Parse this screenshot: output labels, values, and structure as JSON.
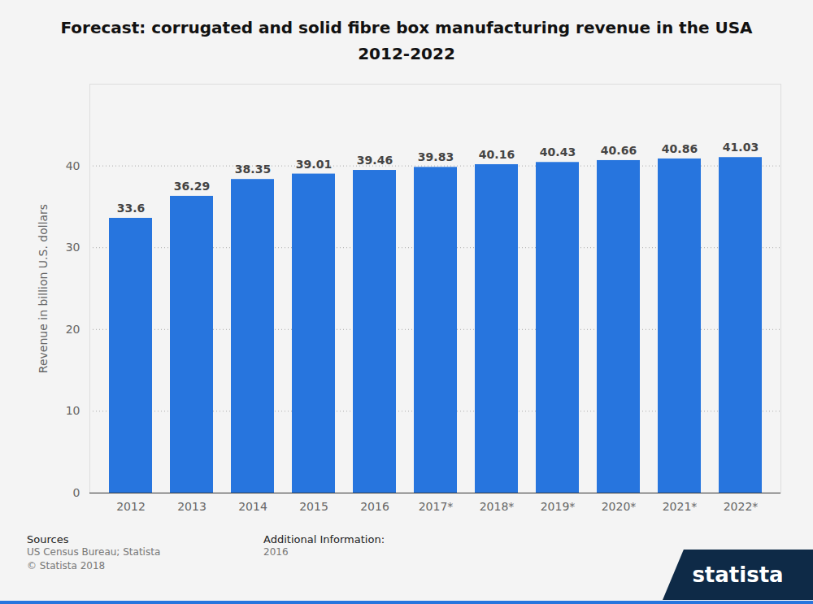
{
  "chart_data": {
    "type": "bar",
    "title": "Forecast: corrugated and solid fibre box manufacturing revenue in the USA 2012-2022",
    "y_label": "Revenue in billion U.S. dollars",
    "categories": [
      "2012",
      "2013",
      "2014",
      "2015",
      "2016",
      "2017*",
      "2018*",
      "2019*",
      "2020*",
      "2021*",
      "2022*"
    ],
    "values": [
      33.6,
      36.29,
      38.35,
      39.01,
      39.46,
      39.83,
      40.16,
      40.43,
      40.66,
      40.86,
      41.03
    ],
    "color": "#2775de",
    "ylim": [
      0,
      50
    ],
    "yticks": [
      0,
      10,
      20,
      30,
      40
    ],
    "grid": true,
    "data_labels": true
  },
  "footer": {
    "sources_title": "Sources",
    "sources": [
      "US Census Bureau; Statista",
      "© Statista 2018"
    ],
    "additional_info_title": "Additional Information:",
    "additional_info": "2016",
    "logo": "statista"
  }
}
